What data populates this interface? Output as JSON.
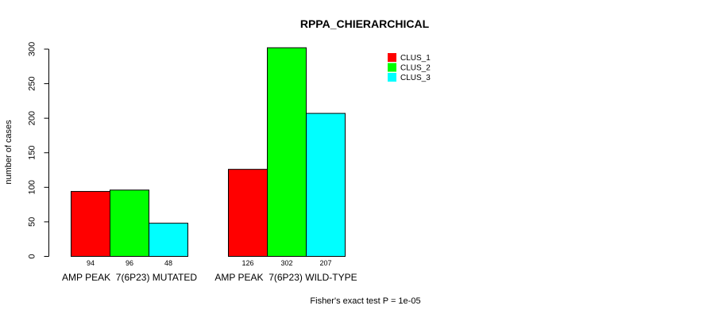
{
  "chart_data": {
    "type": "bar",
    "title": "RPPA_CHIERARCHICAL",
    "xlabel": "",
    "ylabel": "number of cases",
    "ylim": [
      0,
      300
    ],
    "yticks": [
      0,
      50,
      100,
      150,
      200,
      250,
      300
    ],
    "categories": [
      "AMP PEAK  7(6P23) MUTATED",
      "AMP PEAK  7(6P23) WILD-TYPE"
    ],
    "series": [
      {
        "name": "CLUS_1",
        "color": "#ff0000",
        "values": [
          94,
          126
        ]
      },
      {
        "name": "CLUS_2",
        "color": "#00ff00",
        "values": [
          96,
          302
        ]
      },
      {
        "name": "CLUS_3",
        "color": "#00ffff",
        "values": [
          48,
          207
        ]
      }
    ],
    "legend_position": "top-right",
    "grid": false
  },
  "footnote": "Fisher's exact test P = 1e-05"
}
